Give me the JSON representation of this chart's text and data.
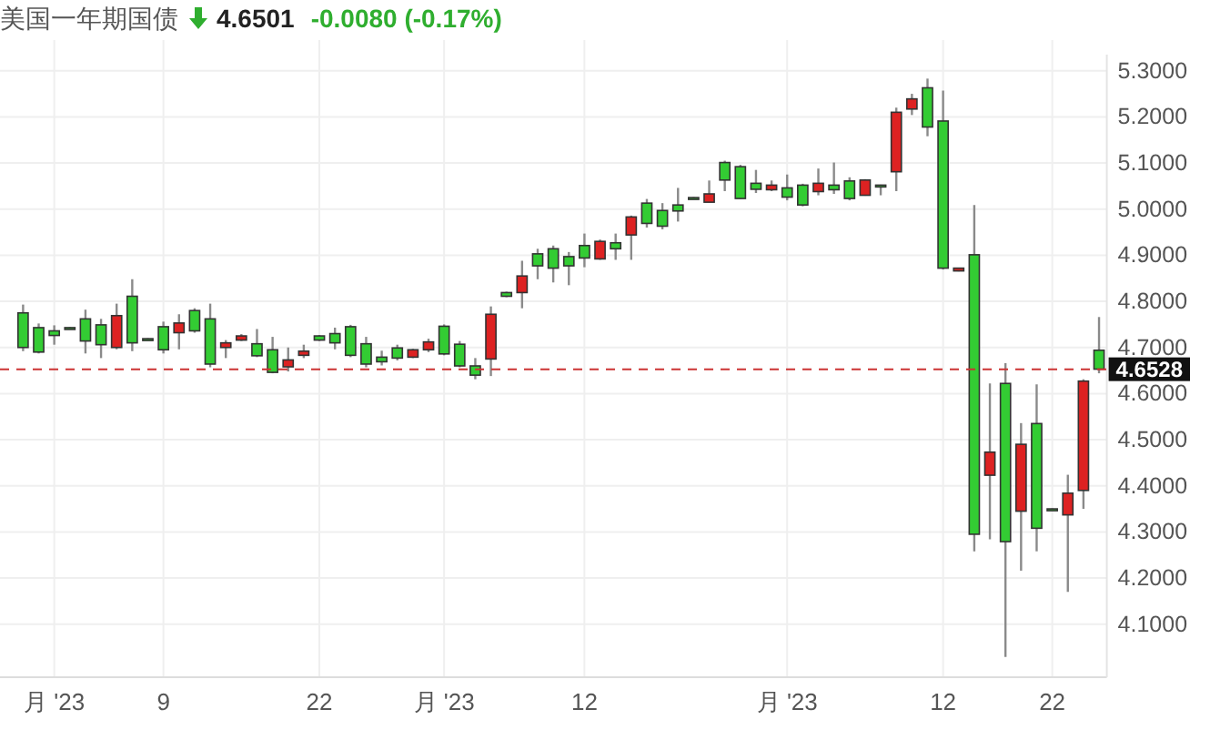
{
  "chart_data": {
    "type": "candlestick",
    "title": "美国一年期国债",
    "annotations": [
      "4.6501",
      "-0.0080 (-0.17%)"
    ],
    "categories": [
      null,
      null,
      "月 '23",
      null,
      null,
      null,
      null,
      null,
      null,
      "9",
      null,
      null,
      null,
      null,
      null,
      null,
      null,
      null,
      null,
      "22",
      null,
      null,
      null,
      null,
      null,
      null,
      null,
      "月 '23",
      null,
      null,
      null,
      null,
      null,
      null,
      null,
      null,
      "12",
      null,
      null,
      null,
      null,
      null,
      null,
      null,
      null,
      null,
      null,
      null,
      null,
      "月 '23",
      null,
      null,
      null,
      null,
      null,
      null,
      null,
      null,
      null,
      "12",
      null,
      null,
      null,
      null,
      null,
      null,
      "22",
      null,
      null,
      null
    ],
    "ohlc": [
      [
        4.775,
        4.793,
        4.692,
        4.7
      ],
      [
        4.743,
        4.752,
        4.687,
        4.69
      ],
      [
        4.736,
        4.748,
        4.706,
        4.726
      ],
      [
        4.743,
        4.744,
        4.742,
        4.743
      ],
      [
        4.762,
        4.782,
        4.687,
        4.714
      ],
      [
        4.749,
        4.762,
        4.677,
        4.706
      ],
      [
        4.7,
        4.795,
        4.696,
        4.769
      ],
      [
        4.811,
        4.848,
        4.692,
        4.71
      ],
      [
        4.719,
        4.72,
        4.718,
        4.719
      ],
      [
        4.745,
        4.756,
        4.687,
        4.695
      ],
      [
        4.732,
        4.772,
        4.696,
        4.753
      ],
      [
        4.78,
        4.785,
        4.732,
        4.736
      ],
      [
        4.762,
        4.795,
        4.657,
        4.664
      ],
      [
        4.7,
        4.716,
        4.677,
        4.71
      ],
      [
        4.716,
        4.729,
        4.714,
        4.725
      ],
      [
        4.708,
        4.74,
        4.679,
        4.682
      ],
      [
        4.695,
        4.723,
        4.644,
        4.646
      ],
      [
        4.658,
        4.7,
        4.648,
        4.673
      ],
      [
        4.683,
        4.706,
        4.677,
        4.692
      ],
      [
        4.725,
        4.727,
        4.714,
        4.716
      ],
      [
        4.73,
        4.743,
        4.696,
        4.71
      ],
      [
        4.745,
        4.749,
        4.679,
        4.683
      ],
      [
        4.708,
        4.723,
        4.657,
        4.664
      ],
      [
        4.679,
        4.693,
        4.661,
        4.669
      ],
      [
        4.699,
        4.706,
        4.672,
        4.677
      ],
      [
        4.679,
        4.697,
        4.677,
        4.695
      ],
      [
        4.695,
        4.719,
        4.69,
        4.712
      ],
      [
        4.746,
        4.75,
        4.683,
        4.686
      ],
      [
        4.707,
        4.714,
        4.657,
        4.66
      ],
      [
        4.66,
        4.677,
        4.631,
        4.64
      ],
      [
        4.675,
        4.789,
        4.638,
        4.772
      ],
      [
        4.819,
        4.821,
        4.809,
        4.811
      ],
      [
        4.819,
        4.888,
        4.785,
        4.855
      ],
      [
        4.903,
        4.914,
        4.848,
        4.877
      ],
      [
        4.914,
        4.921,
        4.841,
        4.872
      ],
      [
        4.897,
        4.907,
        4.835,
        4.877
      ],
      [
        4.921,
        4.947,
        4.874,
        4.894
      ],
      [
        4.892,
        4.934,
        4.89,
        4.93
      ],
      [
        4.927,
        4.947,
        4.89,
        4.914
      ],
      [
        4.944,
        4.986,
        4.89,
        4.983
      ],
      [
        5.013,
        5.022,
        4.96,
        4.969
      ],
      [
        4.997,
        5.013,
        4.956,
        4.963
      ],
      [
        5.009,
        5.046,
        4.973,
        4.996
      ],
      [
        5.025,
        5.026,
        5.024,
        5.025
      ],
      [
        5.015,
        5.062,
        5.015,
        5.033
      ],
      [
        5.101,
        5.105,
        5.039,
        5.063
      ],
      [
        5.092,
        5.096,
        5.022,
        5.023
      ],
      [
        5.056,
        5.085,
        5.035,
        5.043
      ],
      [
        5.042,
        5.062,
        5.039,
        5.052
      ],
      [
        5.046,
        5.075,
        5.019,
        5.026
      ],
      [
        5.052,
        5.055,
        5.006,
        5.009
      ],
      [
        5.038,
        5.088,
        5.03,
        5.056
      ],
      [
        5.052,
        5.101,
        5.033,
        5.042
      ],
      [
        5.061,
        5.069,
        5.019,
        5.023
      ],
      [
        5.03,
        5.065,
        5.029,
        5.063
      ],
      [
        5.052,
        5.053,
        5.03,
        5.051
      ],
      [
        5.081,
        5.22,
        5.039,
        5.21
      ],
      [
        5.217,
        5.25,
        5.204,
        5.239
      ],
      [
        5.263,
        5.283,
        5.158,
        5.178
      ],
      [
        5.191,
        5.257,
        4.869,
        4.872
      ],
      [
        4.866,
        4.873,
        4.865,
        4.872
      ],
      [
        4.901,
        5.009,
        4.258,
        4.295
      ],
      [
        4.423,
        4.622,
        4.284,
        4.473
      ],
      [
        4.622,
        4.666,
        4.029,
        4.279
      ],
      [
        4.345,
        4.536,
        4.216,
        4.49
      ],
      [
        4.535,
        4.62,
        4.258,
        4.308
      ],
      [
        4.35,
        4.351,
        4.349,
        4.35
      ],
      [
        4.337,
        4.424,
        4.17,
        4.384
      ],
      [
        4.39,
        4.631,
        4.35,
        4.627
      ],
      [
        4.694,
        4.766,
        4.644,
        4.653
      ]
    ],
    "colors": [
      "#33cc33",
      "#33cc33",
      "#33cc33",
      "#33cc33",
      "#33cc33",
      "#33cc33",
      "#dd2222",
      "#33cc33",
      "#33cc33",
      "#33cc33",
      "#dd2222",
      "#33cc33",
      "#33cc33",
      "#dd2222",
      "#dd2222",
      "#33cc33",
      "#33cc33",
      "#dd2222",
      "#dd2222",
      "#33cc33",
      "#33cc33",
      "#33cc33",
      "#33cc33",
      "#33cc33",
      "#33cc33",
      "#dd2222",
      "#dd2222",
      "#33cc33",
      "#33cc33",
      "#33cc33",
      "#dd2222",
      "#33cc33",
      "#dd2222",
      "#33cc33",
      "#33cc33",
      "#33cc33",
      "#33cc33",
      "#dd2222",
      "#33cc33",
      "#dd2222",
      "#33cc33",
      "#33cc33",
      "#33cc33",
      "#33cc33",
      "#dd2222",
      "#33cc33",
      "#33cc33",
      "#33cc33",
      "#dd2222",
      "#33cc33",
      "#33cc33",
      "#dd2222",
      "#33cc33",
      "#33cc33",
      "#dd2222",
      "#33cc33",
      "#dd2222",
      "#dd2222",
      "#33cc33",
      "#33cc33",
      "#dd2222",
      "#33cc33",
      "#dd2222",
      "#33cc33",
      "#dd2222",
      "#33cc33",
      "#33cc33",
      "#dd2222",
      "#dd2222",
      "#33cc33"
    ],
    "ylim": [
      3.985,
      5.335
    ],
    "yticks": [
      {
        "value": 4.1,
        "label": "4.1000"
      },
      {
        "value": 4.2,
        "label": "4.2000"
      },
      {
        "value": 4.3,
        "label": "4.3000"
      },
      {
        "value": 4.4,
        "label": "4.4000"
      },
      {
        "value": 4.5,
        "label": "4.5000"
      },
      {
        "value": 4.6,
        "label": "4.6000"
      },
      {
        "value": 4.7,
        "label": "4.7000"
      },
      {
        "value": 4.8,
        "label": "4.8000"
      },
      {
        "value": 4.9,
        "label": "4.9000"
      },
      {
        "value": 5.0,
        "label": "5.0000"
      },
      {
        "value": 5.1,
        "label": "5.1000"
      },
      {
        "value": 5.2,
        "label": "5.2000"
      },
      {
        "value": 5.3,
        "label": "5.3000"
      }
    ],
    "ref_lines": [
      {
        "axis": "y",
        "value": 4.6528,
        "label": "4.6528",
        "color": "#cc3333",
        "line_style": "dashed"
      }
    ],
    "grid": true
  }
}
